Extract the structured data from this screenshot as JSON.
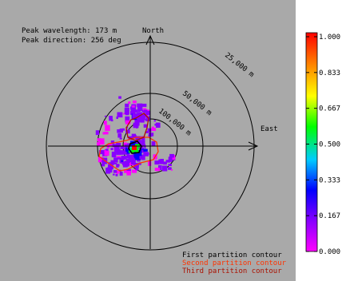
{
  "chart_data": {
    "type": "polar-spectrum",
    "annotations": {
      "peak_wavelength": "Peak wavelength: 173 m",
      "peak_direction": "Peak direction: 256 deg"
    },
    "axis_labels": {
      "north": "North",
      "east": "East"
    },
    "range_rings": [
      {
        "wavelength_label": "25,000 m"
      },
      {
        "wavelength_label": "50,000 m"
      },
      {
        "wavelength_label": "100,000 m"
      }
    ],
    "colorbar": {
      "range": [
        0.0,
        1.0
      ],
      "tick_labels": [
        "1.000",
        "0.833",
        "0.667",
        "0.500",
        "0.333",
        "0.167",
        "0.000"
      ],
      "colormap": [
        "#ff00ff",
        "#8800ff",
        "#0000ff",
        "#00ccff",
        "#00ff00",
        "#ffff00",
        "#ff8800",
        "#ff0000"
      ]
    },
    "contours": [
      {
        "name": "First partition contour",
        "color": "#000000"
      },
      {
        "name": "Second partition contour",
        "color": "#ff3300"
      },
      {
        "name": "Third partition contour",
        "color": "#aa1100"
      }
    ],
    "background_color": "#a9a9a9",
    "peak_value": 1.0
  }
}
